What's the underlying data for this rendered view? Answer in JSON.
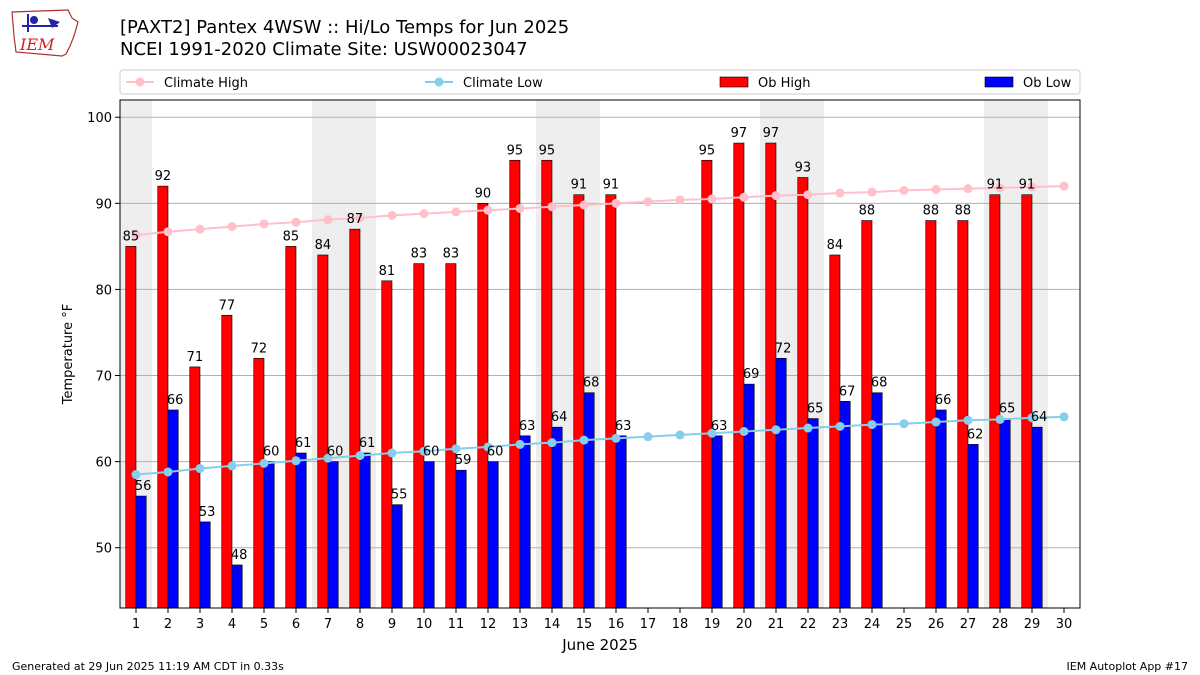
{
  "header": {
    "title_line1": "[PAXT2] Pantex 4WSW :: Hi/Lo Temps for Jun 2025",
    "title_line2": "NCEI 1991-2020 Climate Site: USW00023047",
    "logo_text": "IEM"
  },
  "footer": {
    "left": "Generated at 29 Jun 2025 11:19 AM CDT in 0.33s",
    "right": "IEM Autoplot App #17"
  },
  "colors": {
    "ob_high": "#ff0000",
    "ob_low": "#0000ff",
    "climate_high": "#ffc0cb",
    "climate_low": "#87ceeb",
    "weekend_band": "#eeeeee",
    "grid": "#b0b0b0"
  },
  "chart_data": {
    "type": "bar",
    "xlabel": "June 2025",
    "ylabel": "Temperature °F",
    "ylim": [
      43,
      102
    ],
    "yticks": [
      50,
      60,
      70,
      80,
      90,
      100
    ],
    "grid": "horizontal",
    "legend_position": "top",
    "categories": [
      "1",
      "2",
      "3",
      "4",
      "5",
      "6",
      "7",
      "8",
      "9",
      "10",
      "11",
      "12",
      "13",
      "14",
      "15",
      "16",
      "17",
      "18",
      "19",
      "20",
      "21",
      "22",
      "23",
      "24",
      "25",
      "26",
      "27",
      "28",
      "29",
      "30"
    ],
    "weekend_days": [
      1,
      7,
      8,
      14,
      15,
      21,
      22,
      28,
      29
    ],
    "series": [
      {
        "name": "Ob High",
        "kind": "bar",
        "values": [
          85,
          92,
          71,
          77,
          72,
          85,
          84,
          87,
          81,
          83,
          83,
          90,
          95,
          95,
          91,
          91,
          null,
          null,
          95,
          97,
          97,
          93,
          84,
          88,
          null,
          88,
          88,
          91,
          91,
          null
        ]
      },
      {
        "name": "Ob Low",
        "kind": "bar",
        "values": [
          56,
          66,
          53,
          48,
          60,
          61,
          60,
          61,
          55,
          60,
          59,
          60,
          63,
          64,
          68,
          63,
          null,
          null,
          63,
          69,
          72,
          65,
          67,
          68,
          null,
          66,
          62,
          65,
          64,
          null
        ]
      },
      {
        "name": "Climate High",
        "kind": "line",
        "values": [
          86.3,
          86.7,
          87.0,
          87.3,
          87.6,
          87.8,
          88.1,
          88.3,
          88.6,
          88.8,
          89.0,
          89.2,
          89.4,
          89.6,
          89.8,
          90.0,
          90.2,
          90.4,
          90.5,
          90.7,
          90.9,
          91.0,
          91.2,
          91.3,
          91.5,
          91.6,
          91.7,
          91.8,
          91.9,
          92.0
        ]
      },
      {
        "name": "Climate Low",
        "kind": "line",
        "values": [
          58.5,
          58.8,
          59.2,
          59.5,
          59.8,
          60.1,
          60.4,
          60.7,
          61.0,
          61.2,
          61.5,
          61.7,
          62.0,
          62.2,
          62.5,
          62.7,
          62.9,
          63.1,
          63.3,
          63.5,
          63.7,
          63.9,
          64.1,
          64.3,
          64.4,
          64.6,
          64.8,
          64.9,
          65.1,
          65.2
        ]
      }
    ]
  }
}
